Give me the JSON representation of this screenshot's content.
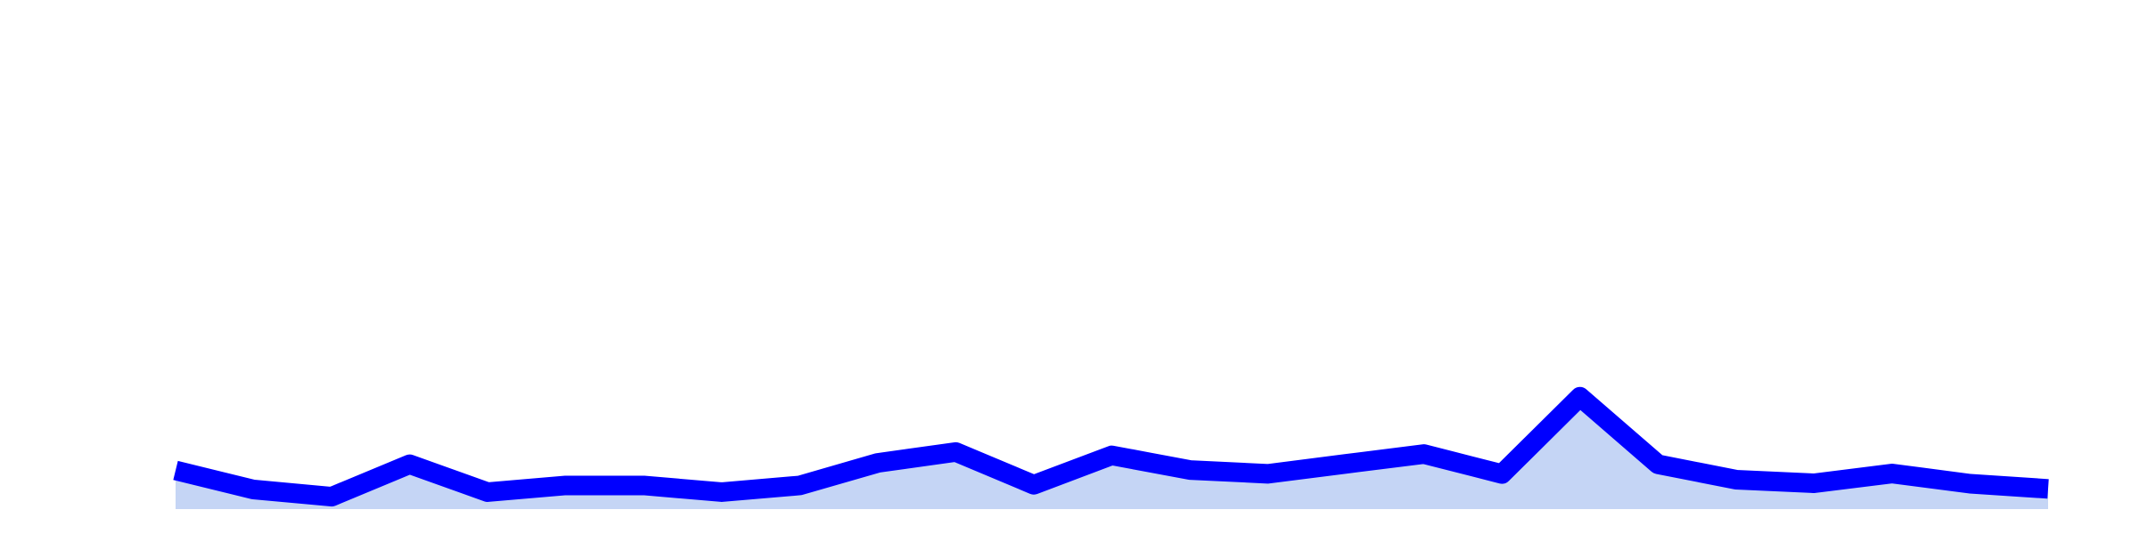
{
  "chart_data": {
    "type": "area",
    "x": [
      1,
      2,
      3,
      4,
      5,
      6,
      7,
      8,
      9,
      10,
      11,
      12,
      13,
      14,
      15,
      16,
      17,
      18,
      19,
      20,
      21,
      22,
      23,
      24,
      25
    ],
    "series": [
      {
        "values": [
          44.0,
          22.3,
          14.1,
          51.1,
          19.3,
          26.9,
          26.9,
          19.3,
          26.9,
          52.6,
          65.0,
          27.7,
          61.2,
          44.5,
          40.2,
          51.5,
          62.7,
          40.0,
          128.0,
          51.0,
          33.5,
          29.4,
          40.5,
          28.9,
          0
        ]
      }
    ],
    "ylim": [
      0,
      580
    ],
    "grid": false,
    "legend": "none",
    "colors": {
      "line": "#0000ff",
      "fill": "#c5d5f5",
      "background": "#ffffff"
    }
  }
}
